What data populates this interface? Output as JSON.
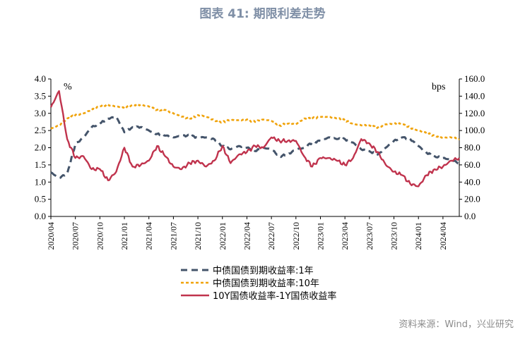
{
  "chart_data": {
    "type": "line",
    "title": "图表 41: 期限利差走势",
    "left_unit": "%",
    "right_unit": "bps",
    "ylim_left": [
      0,
      4
    ],
    "ylim_right": [
      0,
      160
    ],
    "left_ticks": [
      "0.0",
      "0.5",
      "1.0",
      "1.5",
      "2.0",
      "2.5",
      "3.0",
      "3.5",
      "4.0"
    ],
    "right_ticks": [
      "0.0",
      "20.0",
      "40.0",
      "60.0",
      "80.0",
      "100.0",
      "120.0",
      "140.0",
      "160.0"
    ],
    "x_ticks": [
      "2020/04",
      "2020/07",
      "2020/10",
      "2021/01",
      "2021/04",
      "2021/07",
      "2021/10",
      "2022/01",
      "2022/04",
      "2022/07",
      "2022/10",
      "2023/01",
      "2023/04",
      "2023/07",
      "2023/10",
      "2024/01",
      "2024/04"
    ],
    "x_start": "2020/04",
    "x_end": "2024/06",
    "series": [
      {
        "name": "中债国债到期收益率:1年",
        "axis": "left",
        "color": "#44546a",
        "dash": "long",
        "points": [
          [
            "2020/04",
            1.28
          ],
          [
            "2020/05",
            1.12
          ],
          [
            "2020/06",
            1.25
          ],
          [
            "2020/07",
            2.1
          ],
          [
            "2020/08",
            2.3
          ],
          [
            "2020/09",
            2.6
          ],
          [
            "2020/10",
            2.7
          ],
          [
            "2020/11",
            2.85
          ],
          [
            "2020/12",
            2.9
          ],
          [
            "2021/01",
            2.45
          ],
          [
            "2021/02",
            2.6
          ],
          [
            "2021/03",
            2.6
          ],
          [
            "2021/04",
            2.5
          ],
          [
            "2021/05",
            2.4
          ],
          [
            "2021/06",
            2.35
          ],
          [
            "2021/07",
            2.3
          ],
          [
            "2021/08",
            2.35
          ],
          [
            "2021/09",
            2.35
          ],
          [
            "2021/10",
            2.3
          ],
          [
            "2021/11",
            2.3
          ],
          [
            "2021/12",
            2.25
          ],
          [
            "2022/01",
            2.05
          ],
          [
            "2022/02",
            1.95
          ],
          [
            "2022/03",
            2.05
          ],
          [
            "2022/04",
            2.0
          ],
          [
            "2022/05",
            1.9
          ],
          [
            "2022/06",
            2.0
          ],
          [
            "2022/07",
            1.95
          ],
          [
            "2022/08",
            1.75
          ],
          [
            "2022/09",
            1.8
          ],
          [
            "2022/10",
            1.95
          ],
          [
            "2022/11",
            2.0
          ],
          [
            "2022/12",
            2.15
          ],
          [
            "2023/01",
            2.2
          ],
          [
            "2023/02",
            2.3
          ],
          [
            "2023/03",
            2.25
          ],
          [
            "2023/04",
            2.25
          ],
          [
            "2023/05",
            2.15
          ],
          [
            "2023/06",
            1.95
          ],
          [
            "2023/07",
            1.9
          ],
          [
            "2023/08",
            1.8
          ],
          [
            "2023/09",
            2.0
          ],
          [
            "2023/10",
            2.2
          ],
          [
            "2023/11",
            2.3
          ],
          [
            "2023/12",
            2.25
          ],
          [
            "2024/01",
            2.05
          ],
          [
            "2024/02",
            1.85
          ],
          [
            "2024/03",
            1.75
          ],
          [
            "2024/04",
            1.7
          ],
          [
            "2024/05",
            1.65
          ],
          [
            "2024/06",
            1.55
          ]
        ]
      },
      {
        "name": "中债国债到期收益率:10年",
        "axis": "left",
        "color": "#f0a30a",
        "dash": "short",
        "points": [
          [
            "2020/04",
            2.55
          ],
          [
            "2020/05",
            2.65
          ],
          [
            "2020/06",
            2.85
          ],
          [
            "2020/07",
            2.95
          ],
          [
            "2020/08",
            3.0
          ],
          [
            "2020/09",
            3.1
          ],
          [
            "2020/10",
            3.2
          ],
          [
            "2020/11",
            3.25
          ],
          [
            "2020/12",
            3.2
          ],
          [
            "2021/01",
            3.15
          ],
          [
            "2021/02",
            3.25
          ],
          [
            "2021/03",
            3.25
          ],
          [
            "2021/04",
            3.2
          ],
          [
            "2021/05",
            3.1
          ],
          [
            "2021/06",
            3.1
          ],
          [
            "2021/07",
            3.0
          ],
          [
            "2021/08",
            2.9
          ],
          [
            "2021/09",
            2.85
          ],
          [
            "2021/10",
            2.95
          ],
          [
            "2021/11",
            2.9
          ],
          [
            "2021/12",
            2.8
          ],
          [
            "2022/01",
            2.75
          ],
          [
            "2022/02",
            2.8
          ],
          [
            "2022/03",
            2.8
          ],
          [
            "2022/04",
            2.82
          ],
          [
            "2022/05",
            2.75
          ],
          [
            "2022/06",
            2.82
          ],
          [
            "2022/07",
            2.78
          ],
          [
            "2022/08",
            2.65
          ],
          [
            "2022/09",
            2.7
          ],
          [
            "2022/10",
            2.68
          ],
          [
            "2022/11",
            2.85
          ],
          [
            "2022/12",
            2.85
          ],
          [
            "2023/01",
            2.9
          ],
          [
            "2023/02",
            2.9
          ],
          [
            "2023/03",
            2.85
          ],
          [
            "2023/04",
            2.8
          ],
          [
            "2023/05",
            2.7
          ],
          [
            "2023/06",
            2.65
          ],
          [
            "2023/07",
            2.65
          ],
          [
            "2023/08",
            2.58
          ],
          [
            "2023/09",
            2.68
          ],
          [
            "2023/10",
            2.7
          ],
          [
            "2023/11",
            2.68
          ],
          [
            "2023/12",
            2.58
          ],
          [
            "2024/01",
            2.5
          ],
          [
            "2024/02",
            2.42
          ],
          [
            "2024/03",
            2.35
          ],
          [
            "2024/04",
            2.3
          ],
          [
            "2024/05",
            2.3
          ],
          [
            "2024/06",
            2.25
          ]
        ]
      },
      {
        "name": "10Y国债收益率-1Y国债收益率",
        "axis": "right",
        "color": "#c0334d",
        "dash": "solid",
        "points": [
          [
            "2020/04",
            127
          ],
          [
            "2020/05",
            146
          ],
          [
            "2020/06",
            90
          ],
          [
            "2020/07",
            68
          ],
          [
            "2020/08",
            70
          ],
          [
            "2020/09",
            55
          ],
          [
            "2020/10",
            55
          ],
          [
            "2020/11",
            42
          ],
          [
            "2020/12",
            52
          ],
          [
            "2021/01",
            80
          ],
          [
            "2021/02",
            58
          ],
          [
            "2021/03",
            60
          ],
          [
            "2021/04",
            65
          ],
          [
            "2021/05",
            82
          ],
          [
            "2021/06",
            70
          ],
          [
            "2021/07",
            58
          ],
          [
            "2021/08",
            55
          ],
          [
            "2021/09",
            62
          ],
          [
            "2021/10",
            65
          ],
          [
            "2021/11",
            58
          ],
          [
            "2021/12",
            65
          ],
          [
            "2022/01",
            82
          ],
          [
            "2022/02",
            62
          ],
          [
            "2022/03",
            72
          ],
          [
            "2022/04",
            75
          ],
          [
            "2022/05",
            82
          ],
          [
            "2022/06",
            80
          ],
          [
            "2022/07",
            92
          ],
          [
            "2022/08",
            88
          ],
          [
            "2022/09",
            88
          ],
          [
            "2022/10",
            88
          ],
          [
            "2022/11",
            70
          ],
          [
            "2022/12",
            58
          ],
          [
            "2023/01",
            68
          ],
          [
            "2023/02",
            68
          ],
          [
            "2023/03",
            65
          ],
          [
            "2023/04",
            60
          ],
          [
            "2023/05",
            68
          ],
          [
            "2023/06",
            90
          ],
          [
            "2023/07",
            85
          ],
          [
            "2023/08",
            75
          ],
          [
            "2023/09",
            60
          ],
          [
            "2023/10",
            52
          ],
          [
            "2023/11",
            48
          ],
          [
            "2023/12",
            38
          ],
          [
            "2024/01",
            35
          ],
          [
            "2024/02",
            48
          ],
          [
            "2024/03",
            55
          ],
          [
            "2024/04",
            58
          ],
          [
            "2024/05",
            65
          ],
          [
            "2024/06",
            68
          ]
        ]
      }
    ]
  },
  "source": "资料来源：Wind，兴业研究"
}
